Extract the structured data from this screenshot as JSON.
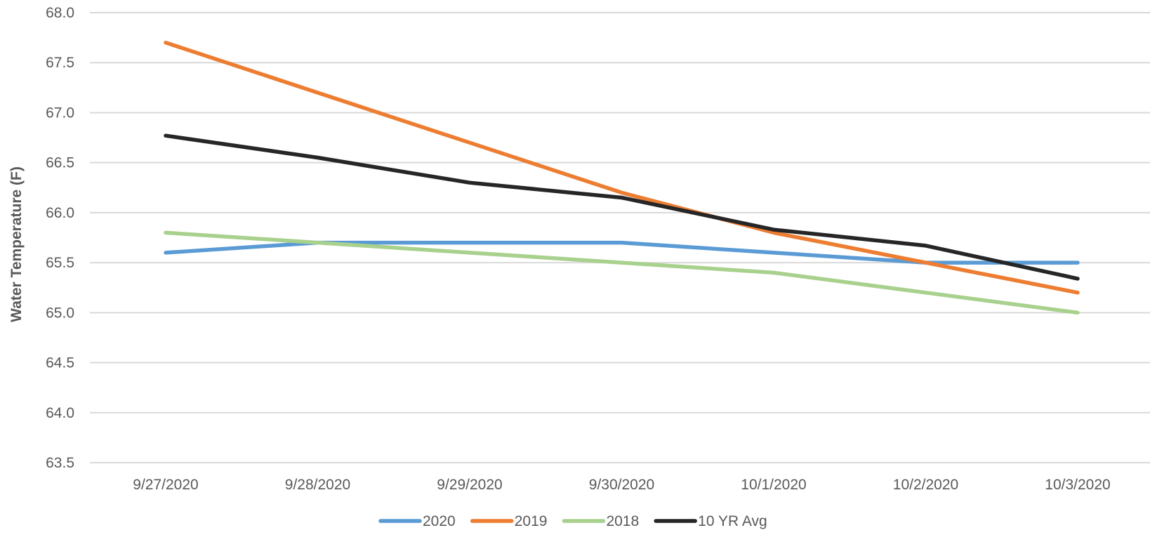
{
  "chart_data": {
    "type": "line",
    "title": "",
    "xlabel": "",
    "ylabel": "Water Temperature (F)",
    "ylim": [
      63.5,
      68.0
    ],
    "ytick_step": 0.5,
    "yticks": [
      "63.5",
      "64.0",
      "64.5",
      "65.0",
      "65.5",
      "66.0",
      "66.5",
      "67.0",
      "67.5",
      "68.0"
    ],
    "categories": [
      "9/27/2020",
      "9/28/2020",
      "9/29/2020",
      "9/30/2020",
      "10/1/2020",
      "10/2/2020",
      "10/3/2020"
    ],
    "grid": true,
    "legend_position": "bottom",
    "series": [
      {
        "name": "2020",
        "color": "#5B9BD5",
        "values": [
          65.6,
          65.7,
          65.7,
          65.7,
          65.6,
          65.5,
          65.5
        ]
      },
      {
        "name": "2019",
        "color": "#ED7D31",
        "values": [
          67.7,
          67.2,
          66.7,
          66.2,
          65.8,
          65.5,
          65.2
        ]
      },
      {
        "name": "2018",
        "color": "#A9D18E",
        "values": [
          65.8,
          65.7,
          65.6,
          65.5,
          65.4,
          65.2,
          65.0
        ]
      },
      {
        "name": "10 YR Avg",
        "color": "#262626",
        "values": [
          66.77,
          66.55,
          66.3,
          66.15,
          65.83,
          65.67,
          65.34
        ]
      }
    ]
  }
}
